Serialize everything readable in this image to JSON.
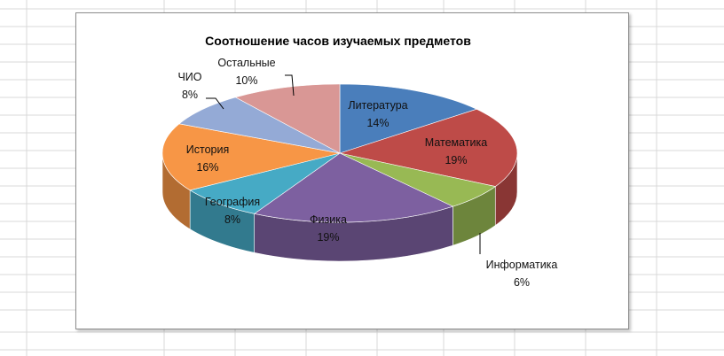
{
  "chart_data": {
    "type": "pie",
    "title": "Соотношение часов изучаемых предметов",
    "legend": "none",
    "style": "3d-exploded-none",
    "slices": [
      {
        "name": "Литература",
        "value": 14,
        "label": "14%",
        "color": "#4a7ebb"
      },
      {
        "name": "Математика",
        "value": 19,
        "label": "19%",
        "color": "#be4b48"
      },
      {
        "name": "Информатика",
        "value": 6,
        "label": "6%",
        "color": "#98b954"
      },
      {
        "name": "Физика",
        "value": 19,
        "label": "19%",
        "color": "#7d60a0"
      },
      {
        "name": "География",
        "value": 8,
        "label": "8%",
        "color": "#46aac5"
      },
      {
        "name": "История",
        "value": 16,
        "label": "16%",
        "color": "#f79646"
      },
      {
        "name": "ЧИО",
        "value": 8,
        "label": "8%",
        "color": "#94aad6"
      },
      {
        "name": "Остальные",
        "value": 10,
        "label": "10%",
        "color": "#d99795"
      }
    ]
  }
}
